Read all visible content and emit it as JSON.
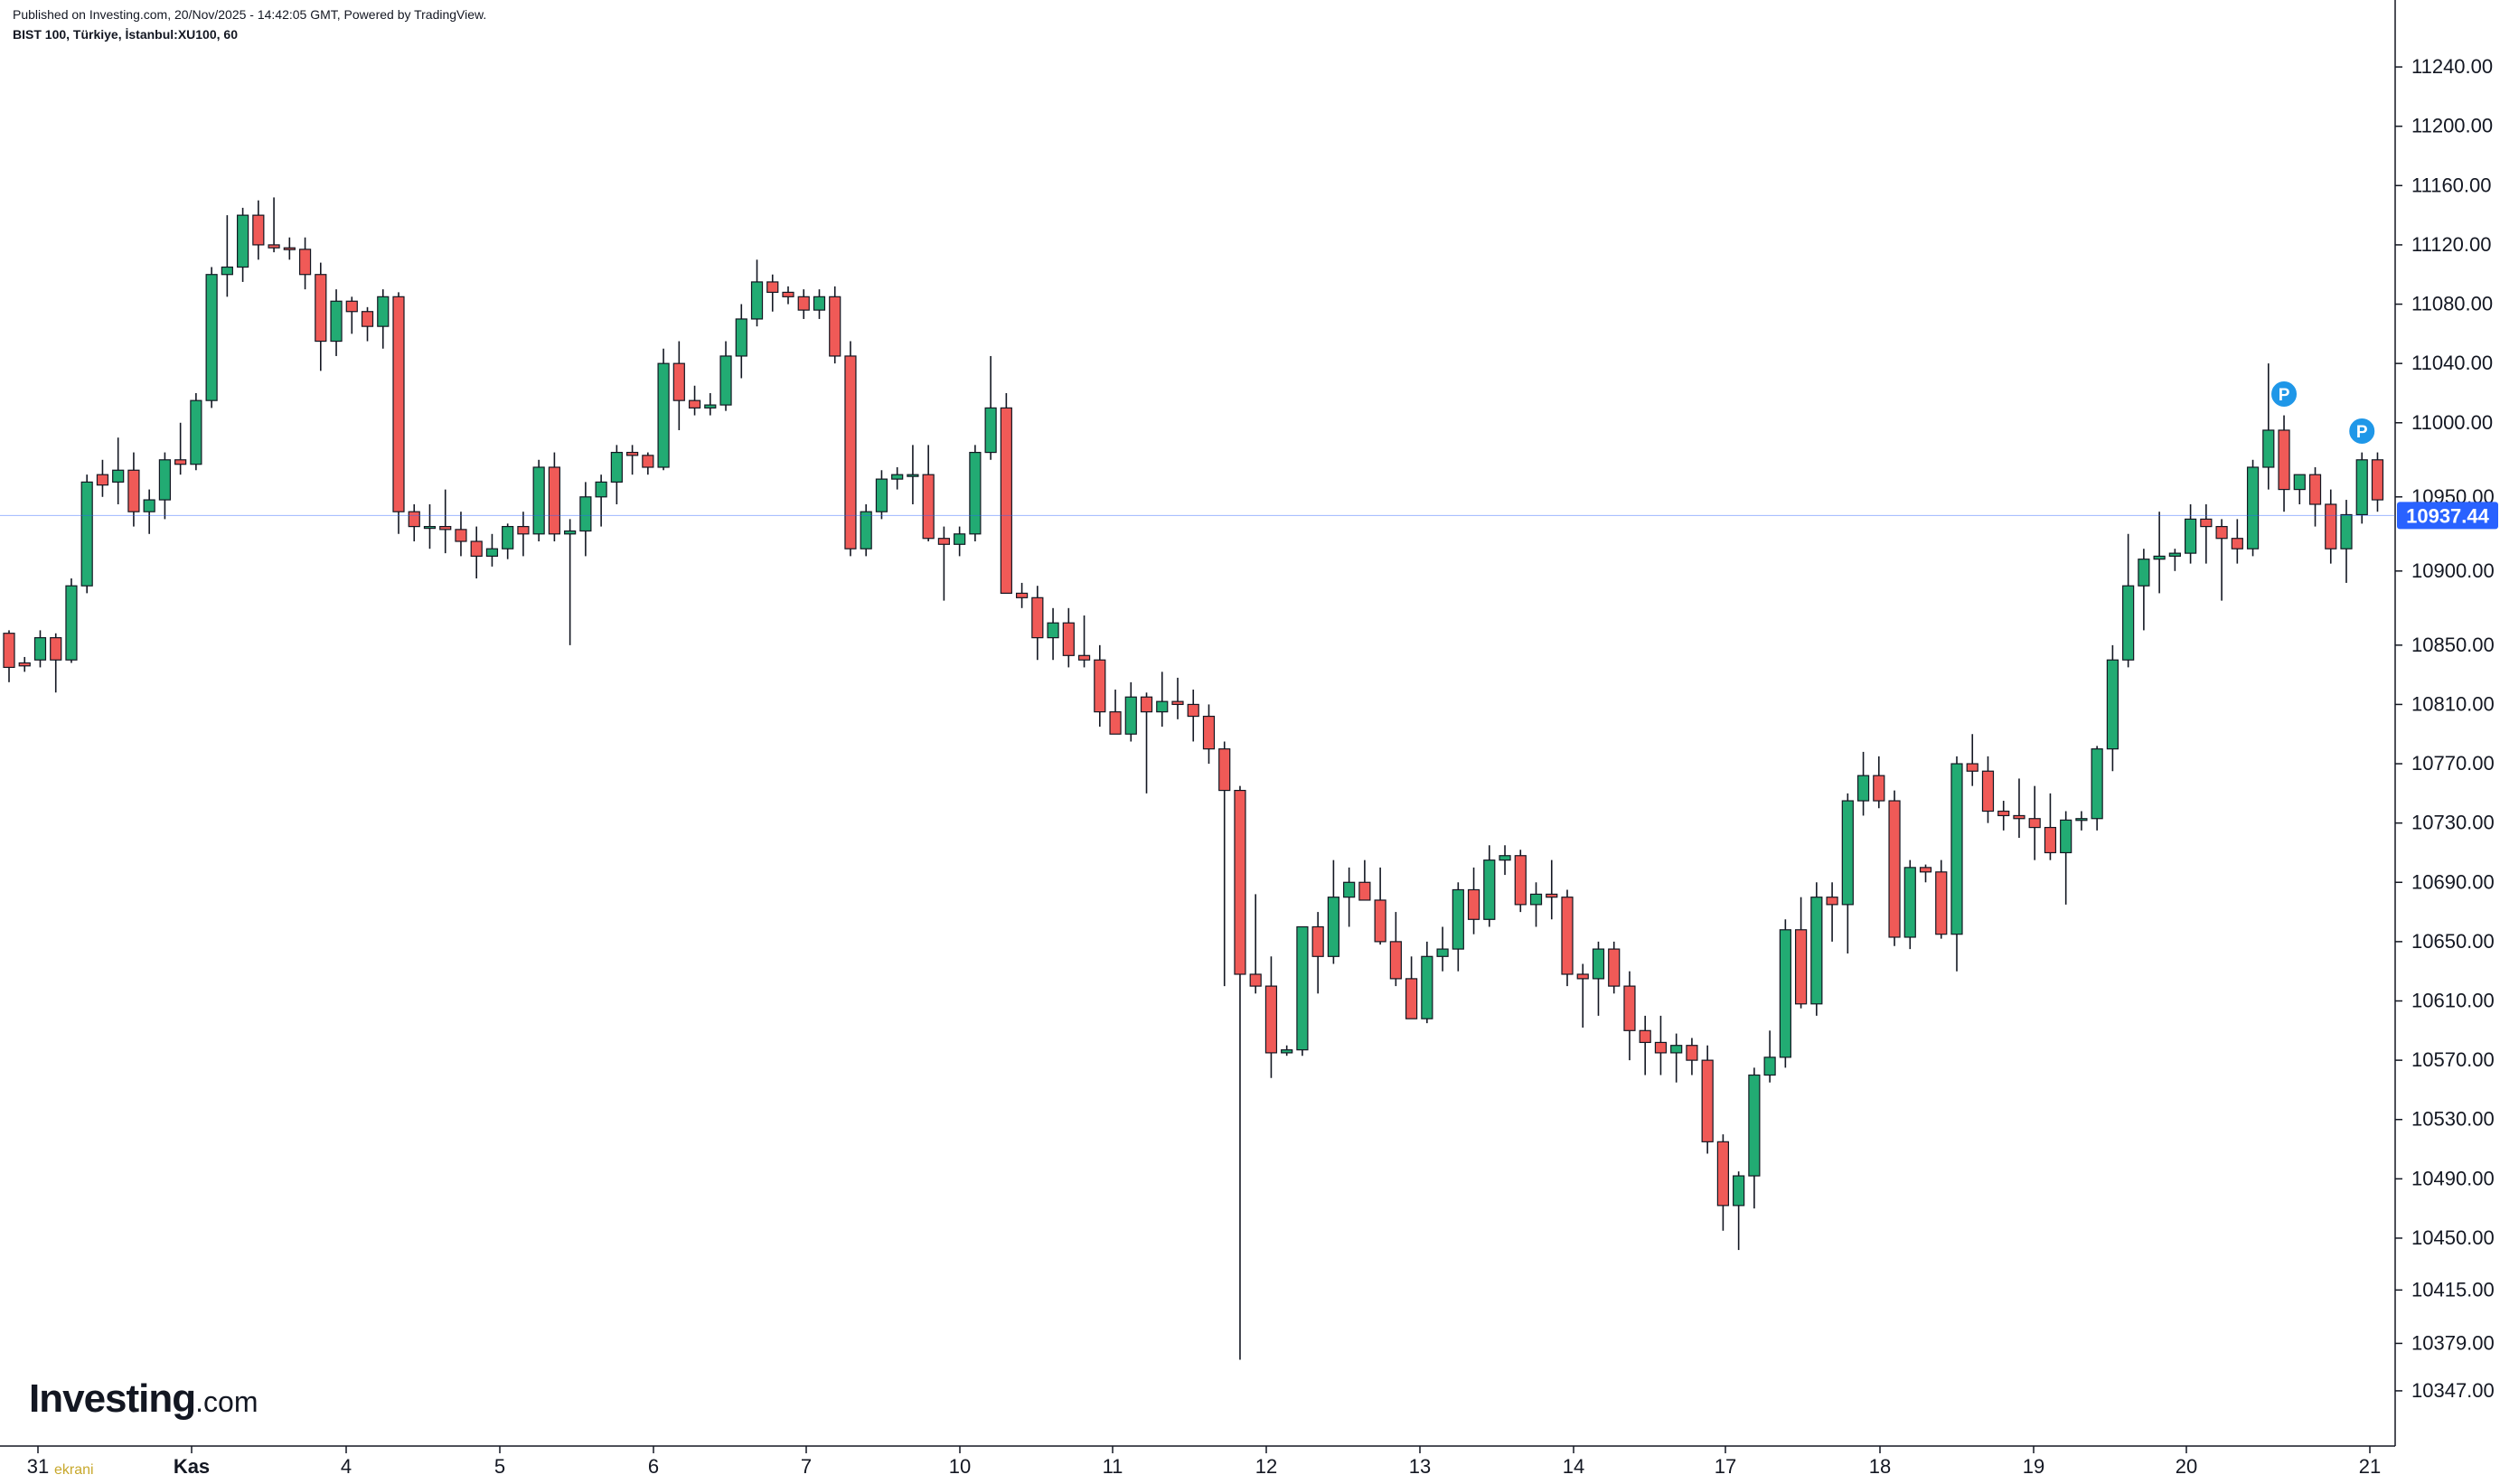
{
  "header": {
    "published": "Published on Investing.com, 20/Nov/2025 - 14:42:05 GMT, Powered by TradingView.",
    "symbol": "BIST 100, Türkiye, İstanbul:XU100, 60"
  },
  "logo": {
    "brand": "Investing",
    "suffix": ".com"
  },
  "watermark": "ekrani",
  "colors": {
    "up": "#22ab73",
    "down": "#f05a57",
    "price_line": "#2962ff",
    "marker": "#1f97e8"
  },
  "chart_data": {
    "type": "candlestick",
    "ylim": [
      10325,
      11262
    ],
    "y_ticks": [
      "10347.00",
      "10379.00",
      "10415.00",
      "10450.00",
      "10490.00",
      "10530.00",
      "10570.00",
      "10610.00",
      "10650.00",
      "10690.00",
      "10730.00",
      "10770.00",
      "10810.00",
      "10850.00",
      "10900.00",
      "10950.00",
      "11000.00",
      "11040.00",
      "11080.00",
      "11120.00",
      "11160.00",
      "11200.00",
      "11240.00"
    ],
    "x_ticks": [
      "31",
      "Kas",
      "4",
      "5",
      "6",
      "7",
      "10",
      "11",
      "12",
      "13",
      "14",
      "17",
      "18",
      "19",
      "20",
      "21"
    ],
    "last_price": 10937.44,
    "last_price_label": "10937.44",
    "markers": [
      {
        "label": "P",
        "bar": 146
      },
      {
        "label": "P",
        "bar": 151
      }
    ],
    "candles": [
      [
        10858,
        10860,
        10825,
        10835
      ],
      [
        10838,
        10842,
        10832,
        10836
      ],
      [
        10840,
        10860,
        10835,
        10855
      ],
      [
        10855,
        10858,
        10818,
        10840
      ],
      [
        10840,
        10895,
        10838,
        10890
      ],
      [
        10890,
        10965,
        10885,
        10960
      ],
      [
        10965,
        10975,
        10950,
        10958
      ],
      [
        10960,
        10990,
        10945,
        10968
      ],
      [
        10968,
        10980,
        10930,
        10940
      ],
      [
        10940,
        10955,
        10925,
        10948
      ],
      [
        10948,
        10980,
        10935,
        10975
      ],
      [
        10975,
        11000,
        10965,
        10972
      ],
      [
        10972,
        11020,
        10968,
        11015
      ],
      [
        11015,
        11105,
        11010,
        11100
      ],
      [
        11100,
        11140,
        11085,
        11105
      ],
      [
        11105,
        11145,
        11095,
        11140
      ],
      [
        11140,
        11150,
        11110,
        11120
      ],
      [
        11120,
        11152,
        11115,
        11118
      ],
      [
        11118,
        11125,
        11110,
        11117
      ],
      [
        11117,
        11125,
        11090,
        11100
      ],
      [
        11100,
        11108,
        11035,
        11055
      ],
      [
        11055,
        11090,
        11045,
        11082
      ],
      [
        11082,
        11085,
        11060,
        11075
      ],
      [
        11075,
        11078,
        11055,
        11065
      ],
      [
        11065,
        11090,
        11050,
        11085
      ],
      [
        11085,
        11088,
        10925,
        10940
      ],
      [
        10940,
        10945,
        10920,
        10930
      ],
      [
        10930,
        10945,
        10915,
        10930
      ],
      [
        10930,
        10955,
        10912,
        10928
      ],
      [
        10928,
        10940,
        10910,
        10920
      ],
      [
        10920,
        10930,
        10895,
        10910
      ],
      [
        10910,
        10925,
        10903,
        10915
      ],
      [
        10915,
        10932,
        10908,
        10930
      ],
      [
        10930,
        10940,
        10910,
        10925
      ],
      [
        10925,
        10975,
        10920,
        10970
      ],
      [
        10970,
        10980,
        10920,
        10925
      ],
      [
        10925,
        10935,
        10850,
        10927
      ],
      [
        10927,
        10960,
        10910,
        10950
      ],
      [
        10950,
        10965,
        10930,
        10960
      ],
      [
        10960,
        10985,
        10945,
        10980
      ],
      [
        10980,
        10985,
        10965,
        10978
      ],
      [
        10978,
        10980,
        10965,
        10970
      ],
      [
        10970,
        11050,
        10968,
        11040
      ],
      [
        11040,
        11055,
        10995,
        11015
      ],
      [
        11015,
        11025,
        11005,
        11010
      ],
      [
        11010,
        11020,
        11005,
        11012
      ],
      [
        11012,
        11055,
        11008,
        11045
      ],
      [
        11045,
        11080,
        11030,
        11070
      ],
      [
        11070,
        11110,
        11065,
        11095
      ],
      [
        11095,
        11100,
        11075,
        11088
      ],
      [
        11088,
        11092,
        11080,
        11085
      ],
      [
        11085,
        11090,
        11070,
        11076
      ],
      [
        11076,
        11090,
        11070,
        11085
      ],
      [
        11085,
        11092,
        11040,
        11045
      ],
      [
        11045,
        11055,
        10910,
        10915
      ],
      [
        10915,
        10945,
        10910,
        10940
      ],
      [
        10940,
        10968,
        10935,
        10962
      ],
      [
        10962,
        10970,
        10955,
        10965
      ],
      [
        10965,
        10985,
        10945,
        10965
      ],
      [
        10965,
        10985,
        10920,
        10922
      ],
      [
        10922,
        10930,
        10880,
        10918
      ],
      [
        10918,
        10930,
        10910,
        10925
      ],
      [
        10925,
        10985,
        10920,
        10980
      ],
      [
        10980,
        11045,
        10975,
        11010
      ],
      [
        11010,
        11020,
        10885,
        10885
      ],
      [
        10885,
        10892,
        10875,
        10882
      ],
      [
        10882,
        10890,
        10840,
        10855
      ],
      [
        10855,
        10875,
        10840,
        10865
      ],
      [
        10865,
        10875,
        10835,
        10843
      ],
      [
        10843,
        10870,
        10835,
        10840
      ],
      [
        10840,
        10850,
        10795,
        10805
      ],
      [
        10805,
        10820,
        10790,
        10790
      ],
      [
        10790,
        10825,
        10785,
        10815
      ],
      [
        10815,
        10818,
        10750,
        10805
      ],
      [
        10805,
        10832,
        10795,
        10812
      ],
      [
        10812,
        10828,
        10800,
        10810
      ],
      [
        10810,
        10820,
        10785,
        10802
      ],
      [
        10802,
        10810,
        10770,
        10780
      ],
      [
        10780,
        10785,
        10620,
        10752
      ],
      [
        10752,
        10755,
        10368,
        10628
      ],
      [
        10628,
        10682,
        10615,
        10620
      ],
      [
        10620,
        10640,
        10558,
        10575
      ],
      [
        10575,
        10580,
        10573,
        10577
      ],
      [
        10577,
        10660,
        10573,
        10660
      ],
      [
        10660,
        10670,
        10615,
        10640
      ],
      [
        10640,
        10705,
        10635,
        10680
      ],
      [
        10680,
        10700,
        10660,
        10690
      ],
      [
        10690,
        10705,
        10680,
        10678
      ],
      [
        10678,
        10700,
        10648,
        10650
      ],
      [
        10650,
        10670,
        10620,
        10625
      ],
      [
        10625,
        10640,
        10598,
        10598
      ],
      [
        10598,
        10650,
        10595,
        10640
      ],
      [
        10640,
        10660,
        10630,
        10645
      ],
      [
        10645,
        10690,
        10630,
        10685
      ],
      [
        10685,
        10700,
        10655,
        10665
      ],
      [
        10665,
        10715,
        10660,
        10705
      ],
      [
        10705,
        10715,
        10695,
        10708
      ],
      [
        10708,
        10712,
        10670,
        10675
      ],
      [
        10675,
        10690,
        10660,
        10682
      ],
      [
        10682,
        10705,
        10665,
        10680
      ],
      [
        10680,
        10685,
        10620,
        10628
      ],
      [
        10628,
        10635,
        10592,
        10625
      ],
      [
        10625,
        10650,
        10600,
        10645
      ],
      [
        10645,
        10650,
        10615,
        10620
      ],
      [
        10620,
        10630,
        10570,
        10590
      ],
      [
        10590,
        10600,
        10560,
        10582
      ],
      [
        10582,
        10600,
        10560,
        10575
      ],
      [
        10575,
        10588,
        10555,
        10580
      ],
      [
        10580,
        10585,
        10560,
        10570
      ],
      [
        10570,
        10580,
        10507,
        10515
      ],
      [
        10515,
        10520,
        10455,
        10472
      ],
      [
        10472,
        10495,
        10442,
        10492
      ],
      [
        10492,
        10565,
        10470,
        10560
      ],
      [
        10560,
        10590,
        10555,
        10572
      ],
      [
        10572,
        10665,
        10565,
        10658
      ],
      [
        10658,
        10680,
        10605,
        10608
      ],
      [
        10608,
        10690,
        10600,
        10680
      ],
      [
        10680,
        10690,
        10650,
        10675
      ],
      [
        10675,
        10750,
        10642,
        10745
      ],
      [
        10745,
        10778,
        10735,
        10762
      ],
      [
        10762,
        10775,
        10740,
        10745
      ],
      [
        10745,
        10752,
        10647,
        10653
      ],
      [
        10653,
        10705,
        10645,
        10700
      ],
      [
        10700,
        10702,
        10690,
        10697
      ],
      [
        10697,
        10705,
        10652,
        10655
      ],
      [
        10655,
        10775,
        10630,
        10770
      ],
      [
        10770,
        10790,
        10755,
        10765
      ],
      [
        10765,
        10775,
        10730,
        10738
      ],
      [
        10738,
        10745,
        10725,
        10735
      ],
      [
        10735,
        10760,
        10720,
        10733
      ],
      [
        10733,
        10755,
        10705,
        10727
      ],
      [
        10727,
        10750,
        10705,
        10710
      ],
      [
        10710,
        10738,
        10675,
        10732
      ],
      [
        10732,
        10738,
        10725,
        10733
      ],
      [
        10733,
        10782,
        10725,
        10780
      ],
      [
        10780,
        10850,
        10765,
        10840
      ],
      [
        10840,
        10925,
        10835,
        10890
      ],
      [
        10890,
        10915,
        10860,
        10908
      ],
      [
        10908,
        10940,
        10885,
        10910
      ],
      [
        10910,
        10915,
        10900,
        10912
      ],
      [
        10912,
        10945,
        10905,
        10935
      ],
      [
        10935,
        10945,
        10905,
        10930
      ],
      [
        10930,
        10935,
        10880,
        10922
      ],
      [
        10922,
        10935,
        10905,
        10915
      ],
      [
        10915,
        10975,
        10910,
        10970
      ],
      [
        10970,
        11040,
        10955,
        10995
      ],
      [
        10995,
        11005,
        10940,
        10955
      ],
      [
        10955,
        10965,
        10945,
        10965
      ],
      [
        10965,
        10970,
        10930,
        10945
      ],
      [
        10945,
        10955,
        10905,
        10915
      ],
      [
        10915,
        10948,
        10892,
        10938
      ],
      [
        10938,
        10980,
        10932,
        10975
      ],
      [
        10975,
        10980,
        10940,
        10948
      ]
    ]
  }
}
